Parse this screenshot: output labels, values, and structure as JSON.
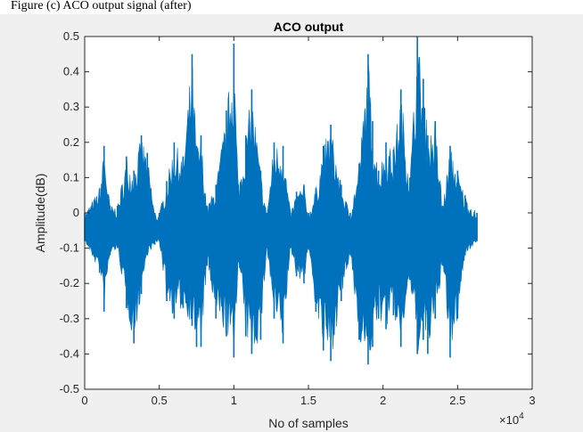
{
  "caption": "Figure (c) ACO output signal (after)",
  "chart_data": {
    "type": "line",
    "title": "ACO output",
    "xlabel": "No of samples",
    "ylabel": "Amplitude(dB)",
    "xlim": [
      0,
      3
    ],
    "ylim": [
      -0.5,
      0.5
    ],
    "x_multiplier_label": "×10^4",
    "x_ticks": [
      0,
      0.5,
      1,
      1.5,
      2,
      2.5,
      3
    ],
    "x_tick_labels": [
      "0",
      "0.5",
      "1",
      "1.5",
      "2",
      "2.5",
      "3"
    ],
    "y_ticks": [
      -0.5,
      -0.4,
      -0.3,
      -0.2,
      -0.1,
      0,
      0.1,
      0.2,
      0.3,
      0.4,
      0.5
    ],
    "y_tick_labels": [
      "-0.5",
      "-0.4",
      "-0.3",
      "-0.2",
      "-0.1",
      "0",
      "0.1",
      "0.2",
      "0.3",
      "0.4",
      "0.5"
    ],
    "grid": false,
    "series_color": "#0072BD",
    "series": [
      {
        "x": [
          0,
          0.1,
          0.13,
          0.17,
          0.22,
          0.28,
          0.33,
          0.38,
          0.42,
          0.47,
          0.5,
          0.55,
          0.6,
          0.66,
          0.72,
          0.75,
          0.78,
          0.82,
          0.88,
          0.95,
          1.0,
          1.03,
          1.08,
          1.12,
          1.18,
          1.22,
          1.27,
          1.33,
          1.38,
          1.42,
          1.47,
          1.5,
          1.55,
          1.6,
          1.65,
          1.72,
          1.78,
          1.84,
          1.9,
          1.93,
          1.97,
          2.02,
          2.07,
          2.12,
          2.18,
          2.23,
          2.27,
          2.3,
          2.35,
          2.4,
          2.45,
          2.5,
          2.55,
          2.63
        ],
        "upper": [
          0.0,
          0.07,
          0.19,
          0.02,
          0.02,
          0.16,
          0.12,
          0.22,
          0.17,
          0.0,
          0.0,
          0.09,
          0.2,
          0.16,
          0.45,
          0.19,
          0.22,
          0.02,
          0.08,
          0.29,
          0.48,
          0.08,
          0.22,
          0.35,
          0.12,
          0.0,
          0.2,
          0.19,
          0.0,
          0.06,
          0.08,
          0.0,
          0.07,
          0.19,
          0.25,
          0.08,
          0.0,
          0.14,
          0.45,
          0.26,
          0.12,
          0.2,
          0.18,
          0.35,
          0.1,
          0.5,
          0.38,
          0.22,
          0.26,
          0.02,
          0.19,
          0.12,
          0.05,
          0.0
        ],
        "lower": [
          -0.08,
          -0.17,
          -0.28,
          -0.12,
          -0.1,
          -0.27,
          -0.37,
          -0.23,
          -0.12,
          -0.09,
          -0.08,
          -0.25,
          -0.3,
          -0.27,
          -0.32,
          -0.38,
          -0.38,
          -0.15,
          -0.3,
          -0.35,
          -0.41,
          -0.14,
          -0.35,
          -0.4,
          -0.36,
          -0.1,
          -0.3,
          -0.37,
          -0.1,
          -0.18,
          -0.2,
          -0.1,
          -0.28,
          -0.39,
          -0.42,
          -0.25,
          -0.12,
          -0.36,
          -0.43,
          -0.38,
          -0.3,
          -0.33,
          -0.29,
          -0.38,
          -0.19,
          -0.4,
          -0.36,
          -0.4,
          -0.3,
          -0.15,
          -0.41,
          -0.3,
          -0.12,
          -0.08
        ]
      }
    ]
  }
}
